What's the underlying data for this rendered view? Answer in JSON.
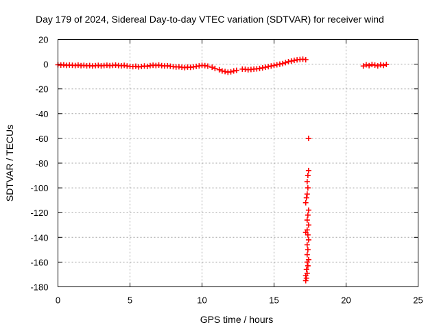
{
  "chart_data": {
    "type": "scatter",
    "title": "Day 179 of 2024, Sidereal Day-to-day VTEC variation (SDTVAR) for receiver wind",
    "xlabel": "GPS time / hours",
    "ylabel": "SDTVAR / TECUs",
    "xlim": [
      0,
      25
    ],
    "ylim": [
      -180,
      20
    ],
    "x_ticks": [
      0,
      5,
      10,
      15,
      20,
      25
    ],
    "y_ticks": [
      20,
      0,
      -20,
      -40,
      -60,
      -80,
      -100,
      -120,
      -140,
      -160,
      -180
    ],
    "grid": true,
    "marker": "plus",
    "color": "#ff0000",
    "series": [
      {
        "name": "SDTVAR",
        "points": [
          [
            0.0,
            -0.5
          ],
          [
            0.2,
            -0.8
          ],
          [
            0.4,
            -0.6
          ],
          [
            0.6,
            -1.0
          ],
          [
            0.8,
            -0.7
          ],
          [
            1.0,
            -0.9
          ],
          [
            1.2,
            -1.1
          ],
          [
            1.4,
            -0.8
          ],
          [
            1.6,
            -1.2
          ],
          [
            1.8,
            -1.0
          ],
          [
            2.0,
            -1.3
          ],
          [
            2.2,
            -1.1
          ],
          [
            2.4,
            -1.5
          ],
          [
            2.6,
            -1.2
          ],
          [
            2.8,
            -1.0
          ],
          [
            3.0,
            -1.4
          ],
          [
            3.2,
            -1.1
          ],
          [
            3.4,
            -0.9
          ],
          [
            3.6,
            -1.2
          ],
          [
            3.8,
            -1.0
          ],
          [
            4.0,
            -0.8
          ],
          [
            4.2,
            -1.1
          ],
          [
            4.4,
            -1.3
          ],
          [
            4.6,
            -1.0
          ],
          [
            4.8,
            -1.5
          ],
          [
            5.0,
            -1.8
          ],
          [
            5.2,
            -2.0
          ],
          [
            5.4,
            -1.7
          ],
          [
            5.6,
            -2.2
          ],
          [
            5.8,
            -1.9
          ],
          [
            6.0,
            -1.5
          ],
          [
            6.2,
            -1.8
          ],
          [
            6.4,
            -1.2
          ],
          [
            6.6,
            -0.9
          ],
          [
            6.8,
            -1.1
          ],
          [
            7.0,
            -0.8
          ],
          [
            7.2,
            -1.2
          ],
          [
            7.4,
            -1.5
          ],
          [
            7.6,
            -1.3
          ],
          [
            7.8,
            -1.7
          ],
          [
            8.0,
            -2.0
          ],
          [
            8.2,
            -2.3
          ],
          [
            8.4,
            -2.1
          ],
          [
            8.6,
            -2.5
          ],
          [
            8.8,
            -2.8
          ],
          [
            9.0,
            -2.4
          ],
          [
            9.2,
            -2.6
          ],
          [
            9.4,
            -2.2
          ],
          [
            9.6,
            -1.8
          ],
          [
            9.8,
            -1.4
          ],
          [
            10.0,
            -1.0
          ],
          [
            10.2,
            -1.2
          ],
          [
            10.4,
            -1.6
          ],
          [
            10.7,
            -2.5
          ],
          [
            10.9,
            -3.5
          ],
          [
            11.2,
            -4.5
          ],
          [
            11.4,
            -5.5
          ],
          [
            11.6,
            -6.0
          ],
          [
            11.8,
            -6.5
          ],
          [
            12.0,
            -6.2
          ],
          [
            12.2,
            -5.5
          ],
          [
            12.4,
            -5.0
          ],
          [
            12.8,
            -4.0
          ],
          [
            13.0,
            -4.2
          ],
          [
            13.2,
            -4.5
          ],
          [
            13.4,
            -4.3
          ],
          [
            13.6,
            -4.0
          ],
          [
            13.8,
            -3.8
          ],
          [
            14.0,
            -3.5
          ],
          [
            14.2,
            -3.0
          ],
          [
            14.4,
            -2.5
          ],
          [
            14.6,
            -2.0
          ],
          [
            14.8,
            -1.5
          ],
          [
            15.0,
            -1.0
          ],
          [
            15.2,
            -0.5
          ],
          [
            15.4,
            0.0
          ],
          [
            15.6,
            0.5
          ],
          [
            15.8,
            1.2
          ],
          [
            16.0,
            2.0
          ],
          [
            16.2,
            2.5
          ],
          [
            16.4,
            3.0
          ],
          [
            16.6,
            3.5
          ],
          [
            16.8,
            3.8
          ],
          [
            17.0,
            4.0
          ],
          [
            17.2,
            3.6
          ],
          [
            17.4,
            -60
          ],
          [
            17.4,
            -86
          ],
          [
            17.35,
            -90
          ],
          [
            17.3,
            -95
          ],
          [
            17.35,
            -100
          ],
          [
            17.3,
            -105
          ],
          [
            17.25,
            -108
          ],
          [
            17.2,
            -112
          ],
          [
            17.4,
            -118
          ],
          [
            17.35,
            -122
          ],
          [
            17.3,
            -126
          ],
          [
            17.4,
            -130
          ],
          [
            17.3,
            -134
          ],
          [
            17.2,
            -136
          ],
          [
            17.35,
            -138
          ],
          [
            17.4,
            -142
          ],
          [
            17.3,
            -146
          ],
          [
            17.35,
            -150
          ],
          [
            17.3,
            -154
          ],
          [
            17.4,
            -158
          ],
          [
            17.3,
            -160
          ],
          [
            17.35,
            -163
          ],
          [
            17.25,
            -166
          ],
          [
            17.3,
            -169
          ],
          [
            17.2,
            -171
          ],
          [
            17.25,
            -173
          ],
          [
            17.2,
            -175
          ],
          [
            21.2,
            -1.5
          ],
          [
            21.4,
            -0.5
          ],
          [
            21.6,
            -1.2
          ],
          [
            21.8,
            -0.3
          ],
          [
            22.0,
            -0.8
          ],
          [
            22.2,
            -1.4
          ],
          [
            22.4,
            -0.5
          ],
          [
            22.6,
            -1.0
          ],
          [
            22.8,
            -0.2
          ]
        ]
      }
    ]
  }
}
